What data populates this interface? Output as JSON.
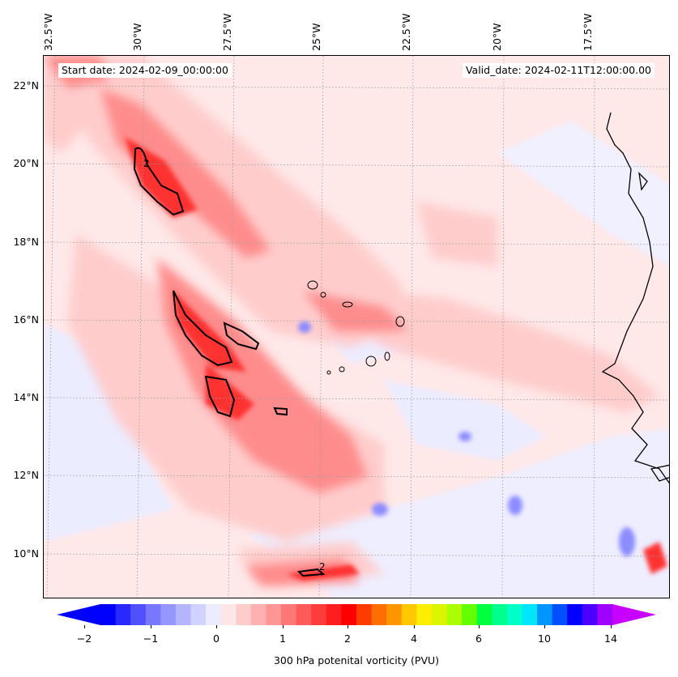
{
  "map": {
    "start_date": "Start date: 2024-02-09_00:00:00",
    "valid_date": "Valid_date: 2024-02-11T12:00:00.00",
    "lon_labels": [
      "32.5°W",
      "30°W",
      "27.5°W",
      "25°W",
      "22.5°W",
      "20°W",
      "17.5°W"
    ],
    "lat_labels": [
      "22°N",
      "20°N",
      "18°N",
      "16°N",
      "14°N",
      "12°N",
      "10°N"
    ],
    "contour_label": "2"
  },
  "colorbar": {
    "title": "300 hPa potenital vorticity (PVU)",
    "tick_labels": [
      "−2",
      "−1",
      "0",
      "1",
      "2",
      "4",
      "6",
      "10",
      "14"
    ],
    "colors": [
      "#0000ff",
      "#2828ff",
      "#5050ff",
      "#7878ff",
      "#9696ff",
      "#b4b4ff",
      "#d2d2ff",
      "#ececff",
      "#ffe6e6",
      "#ffcccc",
      "#ffb0b0",
      "#ff9696",
      "#ff7878",
      "#ff5a5a",
      "#ff3c3c",
      "#ff1e1e",
      "#ff0000",
      "#ff3c00",
      "#ff6e00",
      "#ff9600",
      "#ffc800",
      "#ffee00",
      "#dcf500",
      "#aaff00",
      "#64ff00",
      "#00ff3c",
      "#00ff8c",
      "#00ffc8",
      "#00e6ff",
      "#0096ff",
      "#0050ff",
      "#0000ff",
      "#4b00ff",
      "#a000ff"
    ],
    "end_left_color": "#0000ff",
    "end_right_color": "#c800ff"
  }
}
